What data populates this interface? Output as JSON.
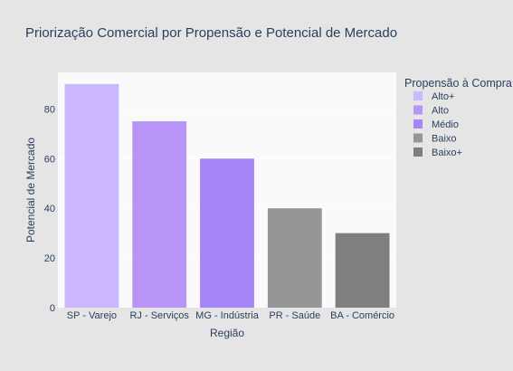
{
  "chart_data": {
    "type": "bar",
    "title": "Priorização Comercial por Propensão e Potencial de Mercado",
    "xlabel": "Região",
    "ylabel": "Potencial de Mercado",
    "categories": [
      "SP - Varejo",
      "RJ - Serviços",
      "MG - Indústria",
      "PR - Saúde",
      "BA - Comércio"
    ],
    "series": [
      {
        "name": "Alto+",
        "values": [
          90,
          null,
          null,
          null,
          null
        ],
        "color": "#cbb8ff"
      },
      {
        "name": "Alto",
        "values": [
          null,
          75,
          null,
          null,
          null
        ],
        "color": "#b794f6"
      },
      {
        "name": "Médio",
        "values": [
          null,
          null,
          60,
          null,
          null
        ],
        "color": "#a685f7"
      },
      {
        "name": "Baixo",
        "values": [
          null,
          null,
          null,
          40,
          null
        ],
        "color": "#969696"
      },
      {
        "name": "Baixo+",
        "values": [
          null,
          null,
          null,
          null,
          30
        ],
        "color": "#7f7f7f"
      }
    ],
    "ylim": [
      0,
      94.7
    ],
    "yticks": [
      0,
      20,
      40,
      60,
      80
    ],
    "grid": true,
    "legend_title": "Propensão à Compra",
    "legend_position": "right"
  },
  "colors": {
    "page_background": "#e5e5e5",
    "plot_background": "#fafafa",
    "gridline": "#ffffff",
    "text": "#2a3f5f"
  }
}
